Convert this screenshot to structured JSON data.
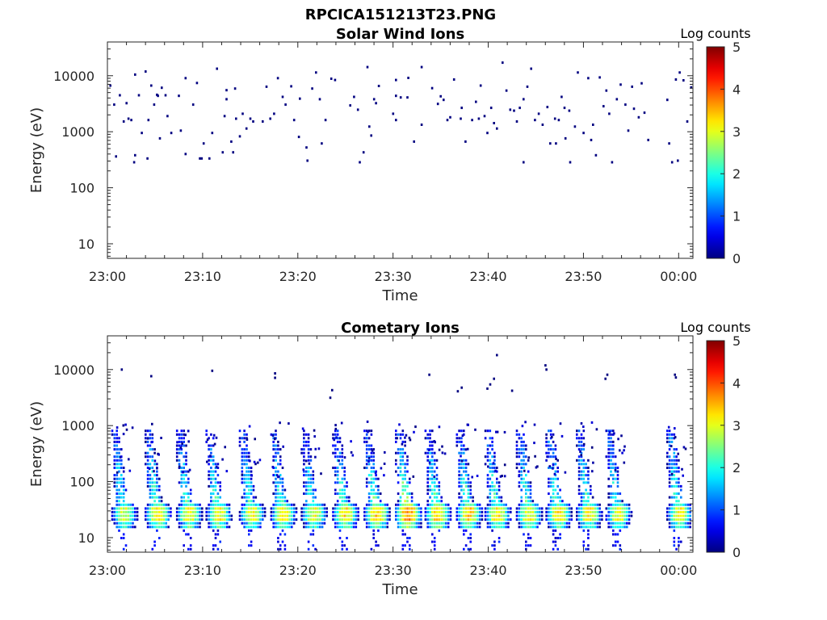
{
  "figure_title": "RPCICA151213T23.PNG",
  "chart_data": [
    {
      "type": "heatmap",
      "title": "Solar Wind Ions",
      "xlabel": "Time",
      "ylabel": "Energy (eV)",
      "x_ticks": [
        "23:00",
        "23:10",
        "23:20",
        "23:30",
        "23:40",
        "23:50",
        "00:00"
      ],
      "y_ticks": [
        "10",
        "100",
        "1000",
        "10000"
      ],
      "xlim": [
        0,
        61.5
      ],
      "xlim_unit": "minutes after 23:00",
      "ylim": [
        5.5,
        40000
      ],
      "y_scale": "log",
      "colorbar": {
        "label": "Log counts",
        "ticks": [
          "0",
          "1",
          "2",
          "3",
          "4",
          "5"
        ],
        "range": [
          0,
          5
        ],
        "colormap": "jet"
      },
      "description_of_data": "sparse single-count (log counts ~0) pixels scattered between ~300 eV and ~20000 eV across the hour",
      "points": [
        [
          0.2,
          7000,
          0
        ],
        [
          0.6,
          3200,
          0
        ],
        [
          0.8,
          380,
          0
        ],
        [
          1.2,
          4700,
          0
        ],
        [
          1.6,
          1600,
          0
        ],
        [
          1.9,
          3400,
          0
        ],
        [
          2.1,
          1800,
          0
        ],
        [
          2.4,
          1700,
          0
        ],
        [
          2.8,
          400,
          0
        ],
        [
          2.7,
          300,
          0
        ],
        [
          2.8,
          11000,
          0
        ],
        [
          3.2,
          4700,
          0
        ],
        [
          3.5,
          1000,
          0
        ],
        [
          3.9,
          12500,
          0
        ],
        [
          4.1,
          350,
          0
        ],
        [
          4.2,
          1700,
          0
        ],
        [
          4.5,
          7000,
          0
        ],
        [
          4.8,
          3200,
          0
        ],
        [
          5.1,
          4800,
          0
        ],
        [
          5.2,
          4600,
          0
        ],
        [
          5.4,
          800,
          0
        ],
        [
          5.6,
          6400,
          0
        ],
        [
          6.0,
          4700,
          0
        ],
        [
          6.2,
          2000,
          0
        ],
        [
          6.6,
          1000,
          0
        ],
        [
          7.4,
          4600,
          0
        ],
        [
          7.6,
          1100,
          0
        ],
        [
          8.1,
          420,
          0
        ],
        [
          8.1,
          9500,
          0
        ],
        [
          8.9,
          3200,
          0
        ],
        [
          9.3,
          7800,
          0
        ],
        [
          9.6,
          350,
          0
        ],
        [
          9.8,
          350,
          0
        ],
        [
          10.0,
          650,
          0
        ],
        [
          10.6,
          350,
          0
        ],
        [
          10.9,
          1000,
          0
        ],
        [
          11.4,
          14000,
          0
        ],
        [
          12.0,
          450,
          0
        ],
        [
          12.2,
          2000,
          0
        ],
        [
          12.4,
          4000,
          0
        ],
        [
          12.4,
          5800,
          0
        ],
        [
          12.9,
          700,
          0
        ],
        [
          13.1,
          450,
          0
        ],
        [
          13.4,
          1800,
          0
        ],
        [
          13.3,
          6200,
          0
        ],
        [
          13.8,
          870,
          0
        ],
        [
          14.1,
          2200,
          0
        ],
        [
          14.5,
          1200,
          0
        ],
        [
          14.9,
          1800,
          0
        ],
        [
          15.2,
          1600,
          0
        ],
        [
          16.2,
          1600,
          0
        ],
        [
          16.6,
          6700,
          0
        ],
        [
          17.0,
          1800,
          0
        ],
        [
          17.4,
          2200,
          0
        ],
        [
          17.8,
          9500,
          0
        ],
        [
          18.3,
          4400,
          0
        ],
        [
          18.6,
          3200,
          0
        ],
        [
          19.2,
          6800,
          0
        ],
        [
          19.5,
          1700,
          0
        ],
        [
          20.0,
          850,
          0
        ],
        [
          20.1,
          4100,
          0
        ],
        [
          20.8,
          550,
          0
        ],
        [
          20.9,
          320,
          0
        ],
        [
          21.4,
          6200,
          0
        ],
        [
          21.8,
          12000,
          0
        ],
        [
          22.2,
          4000,
          0
        ],
        [
          22.4,
          650,
          0
        ],
        [
          22.8,
          1700,
          0
        ],
        [
          23.4,
          9300,
          0
        ],
        [
          23.8,
          8800,
          0
        ],
        [
          25.4,
          3100,
          0
        ],
        [
          25.8,
          4400,
          0
        ],
        [
          26.2,
          2600,
          0
        ],
        [
          26.4,
          300,
          0
        ],
        [
          26.8,
          450,
          0
        ],
        [
          27.2,
          15000,
          0
        ],
        [
          27.4,
          1300,
          0
        ],
        [
          27.6,
          900,
          0
        ],
        [
          27.9,
          4000,
          0
        ],
        [
          28.1,
          3400,
          0
        ],
        [
          28.4,
          6900,
          0
        ],
        [
          29.9,
          2200,
          0
        ],
        [
          30.2,
          1700,
          0
        ],
        [
          30.2,
          4600,
          0
        ],
        [
          30.2,
          8800,
          0
        ],
        [
          30.7,
          4300,
          0
        ],
        [
          31.4,
          4300,
          0
        ],
        [
          31.5,
          9600,
          0
        ],
        [
          32.1,
          700,
          0
        ],
        [
          32.9,
          1400,
          0
        ],
        [
          32.9,
          15000,
          0
        ],
        [
          34.0,
          6300,
          0
        ],
        [
          34.6,
          3300,
          0
        ],
        [
          34.9,
          4500,
          0
        ],
        [
          35.2,
          3900,
          0
        ],
        [
          35.6,
          1700,
          0
        ],
        [
          35.9,
          1900,
          0
        ],
        [
          36.3,
          9000,
          0
        ],
        [
          37.0,
          1800,
          0
        ],
        [
          37.1,
          2800,
          0
        ],
        [
          37.5,
          700,
          0
        ],
        [
          38.2,
          1700,
          0
        ],
        [
          38.6,
          3600,
          0
        ],
        [
          38.9,
          1800,
          0
        ],
        [
          39.1,
          7000,
          0
        ],
        [
          39.5,
          2000,
          0
        ],
        [
          39.8,
          1000,
          0
        ],
        [
          40.2,
          2800,
          0
        ],
        [
          40.5,
          1500,
          0
        ],
        [
          40.8,
          1200,
          0
        ],
        [
          41.4,
          18000,
          0
        ],
        [
          41.8,
          5700,
          0
        ],
        [
          42.2,
          2600,
          0
        ],
        [
          42.6,
          2500,
          0
        ],
        [
          42.9,
          1600,
          0
        ],
        [
          43.2,
          2800,
          0
        ],
        [
          43.6,
          300,
          0
        ],
        [
          43.6,
          4000,
          0
        ],
        [
          44.0,
          6700,
          0
        ],
        [
          44.4,
          14000,
          0
        ],
        [
          44.8,
          1700,
          0
        ],
        [
          45.2,
          2200,
          0
        ],
        [
          45.6,
          1400,
          0
        ],
        [
          46.1,
          2900,
          0
        ],
        [
          46.4,
          650,
          0
        ],
        [
          46.9,
          1800,
          0
        ],
        [
          47.0,
          650,
          0
        ],
        [
          47.3,
          1700,
          0
        ],
        [
          47.6,
          4400,
          0
        ],
        [
          47.9,
          2800,
          0
        ],
        [
          48.0,
          800,
          0
        ],
        [
          48.4,
          2500,
          0
        ],
        [
          48.5,
          300,
          0
        ],
        [
          49.0,
          1300,
          0
        ],
        [
          49.3,
          12000,
          0
        ],
        [
          49.9,
          1000,
          0
        ],
        [
          50.4,
          9500,
          0
        ],
        [
          50.7,
          750,
          0
        ],
        [
          50.9,
          1400,
          0
        ],
        [
          51.2,
          400,
          0
        ],
        [
          51.6,
          9800,
          0
        ],
        [
          52.0,
          3000,
          0
        ],
        [
          52.3,
          5700,
          0
        ],
        [
          52.6,
          2200,
          0
        ],
        [
          52.9,
          300,
          0
        ],
        [
          53.4,
          4000,
          0
        ],
        [
          53.8,
          7300,
          0
        ],
        [
          54.3,
          3200,
          0
        ],
        [
          54.6,
          1100,
          0
        ],
        [
          55.0,
          6700,
          0
        ],
        [
          55.2,
          2700,
          0
        ],
        [
          55.7,
          1900,
          0
        ],
        [
          56.0,
          7700,
          0
        ],
        [
          56.3,
          2300,
          0
        ],
        [
          56.7,
          750,
          0
        ],
        [
          58.7,
          3900,
          0
        ],
        [
          58.9,
          650,
          0
        ],
        [
          59.2,
          300,
          0
        ],
        [
          59.6,
          9000,
          0
        ],
        [
          59.8,
          320,
          0
        ],
        [
          60.0,
          12000,
          0
        ],
        [
          60.4,
          8700,
          0
        ],
        [
          60.8,
          1600,
          0
        ],
        [
          61.2,
          6500,
          0
        ]
      ]
    },
    {
      "type": "heatmap",
      "title": "Cometary Ions",
      "xlabel": "Time",
      "ylabel": "Energy (eV)",
      "x_ticks": [
        "23:00",
        "23:10",
        "23:20",
        "23:30",
        "23:40",
        "23:50",
        "00:00"
      ],
      "y_ticks": [
        "10",
        "100",
        "1000",
        "10000"
      ],
      "xlim": [
        0,
        61.5
      ],
      "xlim_unit": "minutes after 23:00",
      "ylim": [
        5.5,
        40000
      ],
      "y_scale": "log",
      "colorbar": {
        "label": "Log counts",
        "ticks": [
          "0",
          "1",
          "2",
          "3",
          "4",
          "5"
        ],
        "range": [
          0,
          5
        ],
        "colormap": "jet"
      },
      "description_of_data": "periodic ion bursts roughly every 3.3 minutes: core band 15-45 eV at ~3 log counts, dispersed tails rising to ~1000 eV, quieter stretch near 23:56-23:59",
      "bursts": [
        {
          "t": 1.4,
          "peak": 2.9,
          "amp": 1.0
        },
        {
          "t": 4.9,
          "peak": 3.2,
          "amp": 1.1
        },
        {
          "t": 8.2,
          "peak": 3.1,
          "amp": 1.1
        },
        {
          "t": 11.3,
          "peak": 3.1,
          "amp": 1.2
        },
        {
          "t": 14.8,
          "peak": 3.0,
          "amp": 1.1
        },
        {
          "t": 18.1,
          "peak": 3.1,
          "amp": 1.2
        },
        {
          "t": 21.3,
          "peak": 3.0,
          "amp": 1.2
        },
        {
          "t": 24.6,
          "peak": 3.2,
          "amp": 1.2
        },
        {
          "t": 27.9,
          "peak": 3.3,
          "amp": 1.4
        },
        {
          "t": 31.2,
          "peak": 3.7,
          "amp": 1.5
        },
        {
          "t": 34.3,
          "peak": 3.4,
          "amp": 1.5
        },
        {
          "t": 37.6,
          "peak": 3.3,
          "amp": 1.4
        },
        {
          "t": 40.6,
          "peak": 3.2,
          "amp": 1.3
        },
        {
          "t": 43.9,
          "peak": 3.1,
          "amp": 1.1
        },
        {
          "t": 47.0,
          "peak": 3.2,
          "amp": 1.1
        },
        {
          "t": 50.2,
          "peak": 3.1,
          "amp": 1.1
        },
        {
          "t": 53.3,
          "peak": 3.0,
          "amp": 1.1
        },
        {
          "t": 59.7,
          "peak": 3.1,
          "amp": 1.0
        }
      ],
      "sparse_points": [
        [
          1.4,
          10500,
          0
        ],
        [
          4.5,
          8000,
          0
        ],
        [
          10.9,
          10000,
          0
        ],
        [
          17.5,
          9000,
          0
        ],
        [
          17.5,
          7500,
          0
        ],
        [
          23.3,
          3300,
          0
        ],
        [
          23.5,
          4500,
          0
        ],
        [
          33.7,
          8500,
          0
        ],
        [
          36.7,
          4300,
          0
        ],
        [
          37.1,
          5000,
          0
        ],
        [
          39.8,
          4800,
          0
        ],
        [
          40.1,
          5700,
          0
        ],
        [
          40.5,
          7200,
          0
        ],
        [
          40.8,
          19000,
          0
        ],
        [
          42.4,
          4400,
          0
        ],
        [
          45.9,
          12500,
          0
        ],
        [
          46.0,
          10500,
          0
        ],
        [
          52.4,
          8500,
          0
        ],
        [
          52.2,
          7200,
          0
        ],
        [
          59.5,
          8500,
          0
        ],
        [
          59.6,
          7600,
          0
        ]
      ]
    }
  ]
}
